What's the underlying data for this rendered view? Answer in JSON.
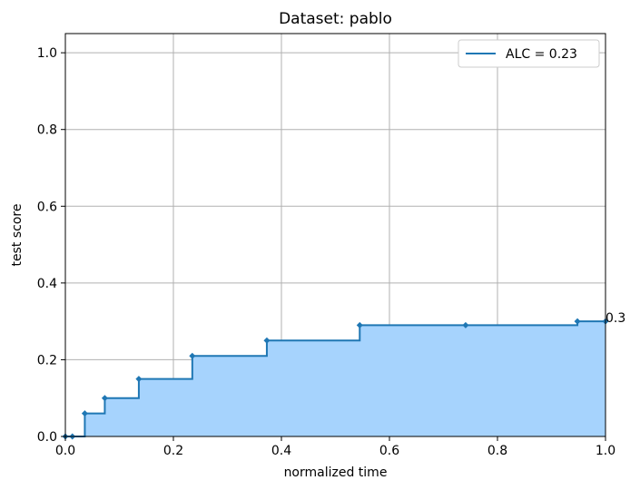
{
  "chart_data": {
    "type": "area",
    "title": "Dataset: pablo",
    "xlabel": "normalized time",
    "ylabel": "test score",
    "xlim": [
      0.0,
      1.0
    ],
    "ylim": [
      0.0,
      1.05
    ],
    "x_ticks": [
      "0.0",
      "0.2",
      "0.4",
      "0.6",
      "0.8",
      "1.0"
    ],
    "y_ticks": [
      "0.0",
      "0.2",
      "0.4",
      "0.6",
      "0.8",
      "1.0"
    ],
    "grid": true,
    "legend_position": "top-right",
    "series": [
      {
        "name": "ALC = 0.23",
        "step": "post",
        "x": [
          0.0,
          0.013,
          0.036,
          0.073,
          0.136,
          0.235,
          0.373,
          0.545,
          0.741,
          0.948,
          1.0
        ],
        "y": [
          0.0,
          0.0,
          0.06,
          0.1,
          0.15,
          0.21,
          0.25,
          0.29,
          0.29,
          0.3,
          0.3
        ]
      }
    ],
    "annotations": [
      {
        "text": "0.3",
        "x": 1.0,
        "y": 0.3
      }
    ],
    "colors": {
      "line": "#1f77b4",
      "fill": "#a6d3fd",
      "grid": "#b0b0b0"
    }
  }
}
